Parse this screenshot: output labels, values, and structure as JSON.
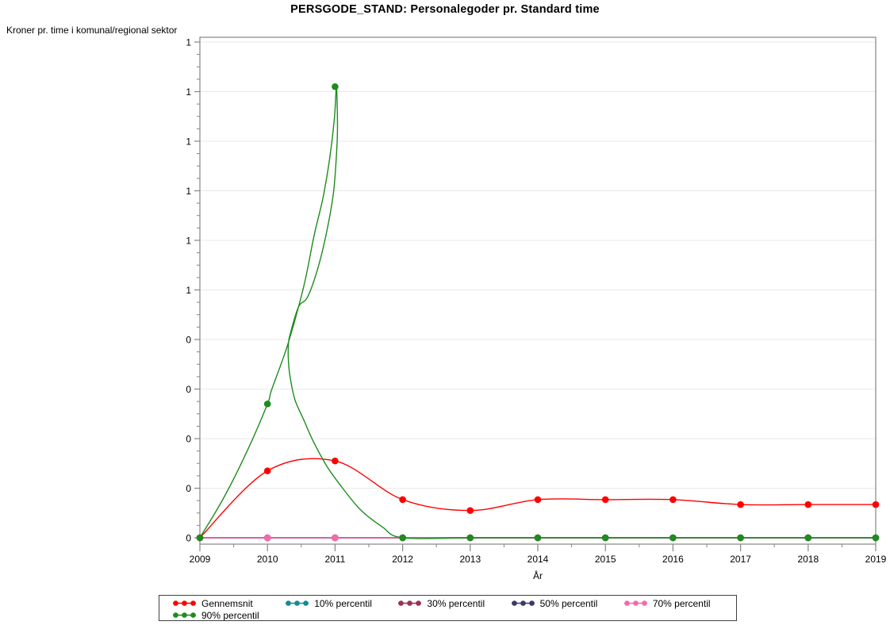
{
  "title": "PERSGODE_STAND: Personalegoder pr. Standard time",
  "chart_data": {
    "type": "line",
    "title": "PERSGODE_STAND: Personalegoder pr. Standard time",
    "ylabel": "Kroner pr. time i komunal/regional sektor",
    "xlabel": "År",
    "x": [
      2009,
      2010,
      2011,
      2012,
      2013,
      2014,
      2015,
      2016,
      2017,
      2018,
      2019
    ],
    "ylim": [
      0,
      1
    ],
    "ytick_step": 0.1,
    "ytick_labels_rounded_to_integer": true,
    "grid": "horizontal-major",
    "background": "#FFFFFF",
    "axis_color": "#858585",
    "grid_color": "#E9E9E9",
    "series": [
      {
        "name": "Gennemsnit",
        "color": "#FF0000",
        "values": [
          0,
          0.135,
          0.155,
          0.077,
          0.055,
          0.077,
          0.077,
          0.077,
          0.067,
          0.067,
          0.067
        ]
      },
      {
        "name": "10% percentil",
        "color": "#148C91",
        "values": [
          0,
          0,
          0,
          0,
          0,
          0,
          0,
          0,
          0,
          0,
          0
        ]
      },
      {
        "name": "30% percentil",
        "color": "#9E3050",
        "values": [
          0,
          0,
          0,
          0,
          0,
          0,
          0,
          0,
          0,
          0,
          0
        ]
      },
      {
        "name": "50% percentil",
        "color": "#3A3A68",
        "values": [
          0,
          0,
          0,
          0,
          0,
          0,
          0,
          0,
          0,
          0,
          0
        ]
      },
      {
        "name": "70% percentil",
        "color": "#F768A8",
        "values": [
          0,
          0,
          0,
          0,
          0,
          0,
          0,
          0,
          0,
          0,
          0
        ]
      },
      {
        "name": "90% percentil",
        "color": "#1E8B1E",
        "values": [
          0,
          0.27,
          0.91,
          0,
          0,
          0,
          0,
          0,
          0,
          0,
          0
        ],
        "curve": [
          [
            2009,
            0
          ],
          [
            2009.35,
            0.08
          ],
          [
            2009.7,
            0.175
          ],
          [
            2010,
            0.27
          ],
          [
            2010.06,
            0.298
          ],
          [
            2010.3,
            0.39
          ],
          [
            2010.54,
            0.509
          ],
          [
            2010.69,
            0.61
          ],
          [
            2010.82,
            0.685
          ],
          [
            2010.92,
            0.765
          ],
          [
            2010.99,
            0.845
          ],
          [
            2011.02,
            0.91
          ],
          [
            2011.035,
            0.845
          ],
          [
            2011.03,
            0.797
          ],
          [
            2010.98,
            0.7
          ],
          [
            2010.88,
            0.62
          ],
          [
            2010.74,
            0.541
          ],
          [
            2010.59,
            0.485
          ],
          [
            2010.46,
            0.466
          ],
          [
            2010.34,
            0.413
          ],
          [
            2010.31,
            0.39
          ],
          [
            2010.31,
            0.357
          ],
          [
            2010.34,
            0.32
          ],
          [
            2010.41,
            0.277
          ],
          [
            2010.54,
            0.237
          ],
          [
            2010.68,
            0.194
          ],
          [
            2010.88,
            0.144
          ],
          [
            2011.09,
            0.104
          ],
          [
            2011.38,
            0.056
          ],
          [
            2011.7,
            0.022
          ],
          [
            2012,
            0
          ],
          [
            2013,
            0
          ],
          [
            2014,
            0
          ],
          [
            2015,
            0
          ],
          [
            2016,
            0
          ],
          [
            2017,
            0
          ],
          [
            2018,
            0
          ],
          [
            2019,
            0
          ]
        ]
      }
    ],
    "legend_position": "bottom"
  },
  "legend": {
    "border_color": "#404040",
    "columns_per_row": 5,
    "entries": [
      "Gennemsnit",
      "10% percentil",
      "30% percentil",
      "50% percentil",
      "70% percentil",
      "90% percentil"
    ]
  }
}
